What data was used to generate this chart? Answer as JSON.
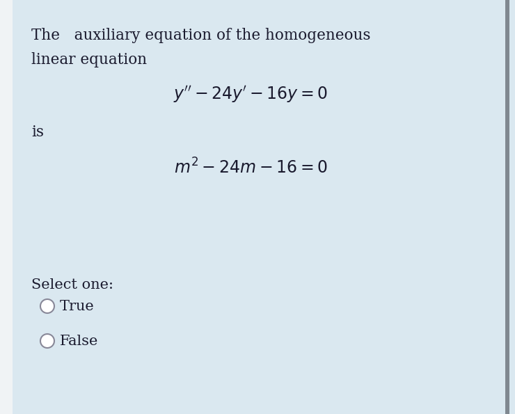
{
  "background_color": "#dae8f0",
  "left_strip_color": "#f0f3f5",
  "right_bar_color": "#808890",
  "right_bar_width": 0.008,
  "text_color": "#1a1a2e",
  "circle_color": "#888898",
  "title_line1": "The   auxiliary equation of the homogeneous",
  "title_line2": "linear equation",
  "equation1": "$y'' - 24y' - 16y = 0$",
  "is_text": "is",
  "equation2": "$m^2 - 24m - 16 = 0$",
  "select_text": "Select one:",
  "option1": "True",
  "option2": "False",
  "fig_width": 7.4,
  "fig_height": 5.95,
  "dpi": 100,
  "title_fontsize": 15.5,
  "eq_fontsize": 17,
  "body_fontsize": 15
}
